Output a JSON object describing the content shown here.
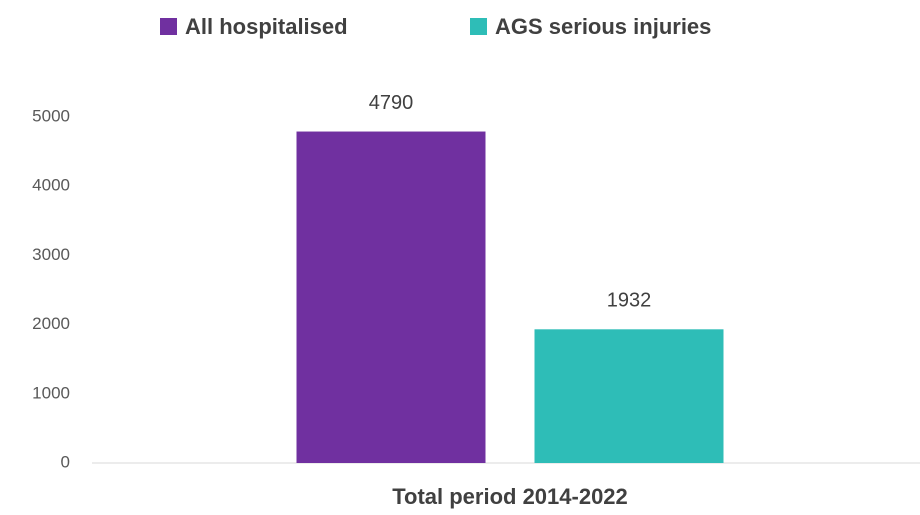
{
  "chart_data": {
    "type": "bar",
    "categories": [
      "Total period 2014-2022"
    ],
    "series": [
      {
        "name": "All hospitalised",
        "color": "#7030a0",
        "values": [
          4790
        ]
      },
      {
        "name": "AGS serious injuries",
        "color": "#2ebdb7",
        "values": [
          1932
        ]
      }
    ],
    "ylim": [
      0,
      5000
    ],
    "yticks": [
      0,
      1000,
      2000,
      3000,
      4000,
      5000
    ],
    "grid": false,
    "legend": "top"
  }
}
